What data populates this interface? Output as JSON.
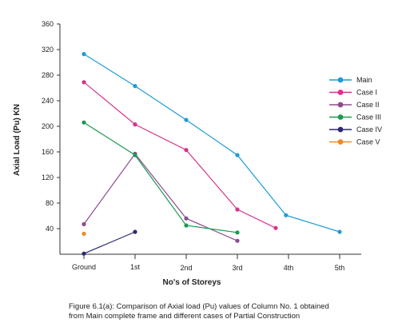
{
  "chart_data": {
    "type": "line",
    "categories": [
      "Ground",
      "1st",
      "2nd",
      "3rd",
      "4th",
      "5th"
    ],
    "xlabel": "No's of Storeys",
    "ylabel": "Axial Load (Pu) KN",
    "ylim": [
      0,
      360
    ],
    "yticks": [
      40,
      80,
      120,
      160,
      200,
      240,
      280,
      320,
      360
    ],
    "grid": false,
    "legend_position": "right",
    "series": [
      {
        "name": "Main",
        "color": "#1f9bd7",
        "points": [
          [
            0,
            313
          ],
          [
            1,
            263
          ],
          [
            2,
            210
          ],
          [
            3,
            155
          ],
          [
            3.95,
            61
          ],
          [
            5,
            35
          ]
        ]
      },
      {
        "name": "Case I",
        "color": "#d6338a",
        "points": [
          [
            0,
            269
          ],
          [
            1,
            203
          ],
          [
            2,
            163
          ],
          [
            3,
            70
          ],
          [
            3.75,
            41
          ]
        ]
      },
      {
        "name": "Case II",
        "color": "#8e4b8f",
        "points": [
          [
            0,
            47
          ],
          [
            1,
            157
          ],
          [
            2,
            56
          ],
          [
            3,
            21
          ]
        ]
      },
      {
        "name": "Case III",
        "color": "#1a9a52",
        "points": [
          [
            0,
            206
          ],
          [
            1,
            155
          ],
          [
            2,
            45
          ],
          [
            3,
            34
          ]
        ]
      },
      {
        "name": "Case IV",
        "color": "#2a2a72",
        "points": [
          [
            0,
            1
          ],
          [
            1,
            35
          ]
        ]
      },
      {
        "name": "Case V",
        "color": "#f08a24",
        "points": [
          [
            0,
            32
          ]
        ]
      }
    ]
  },
  "caption": {
    "line1": "Figure 6.1(a): Comparison of Axial load (Pu) values of Column No. 1 obtained",
    "line2": "from Main complete frame and different cases of Partial Construction"
  }
}
